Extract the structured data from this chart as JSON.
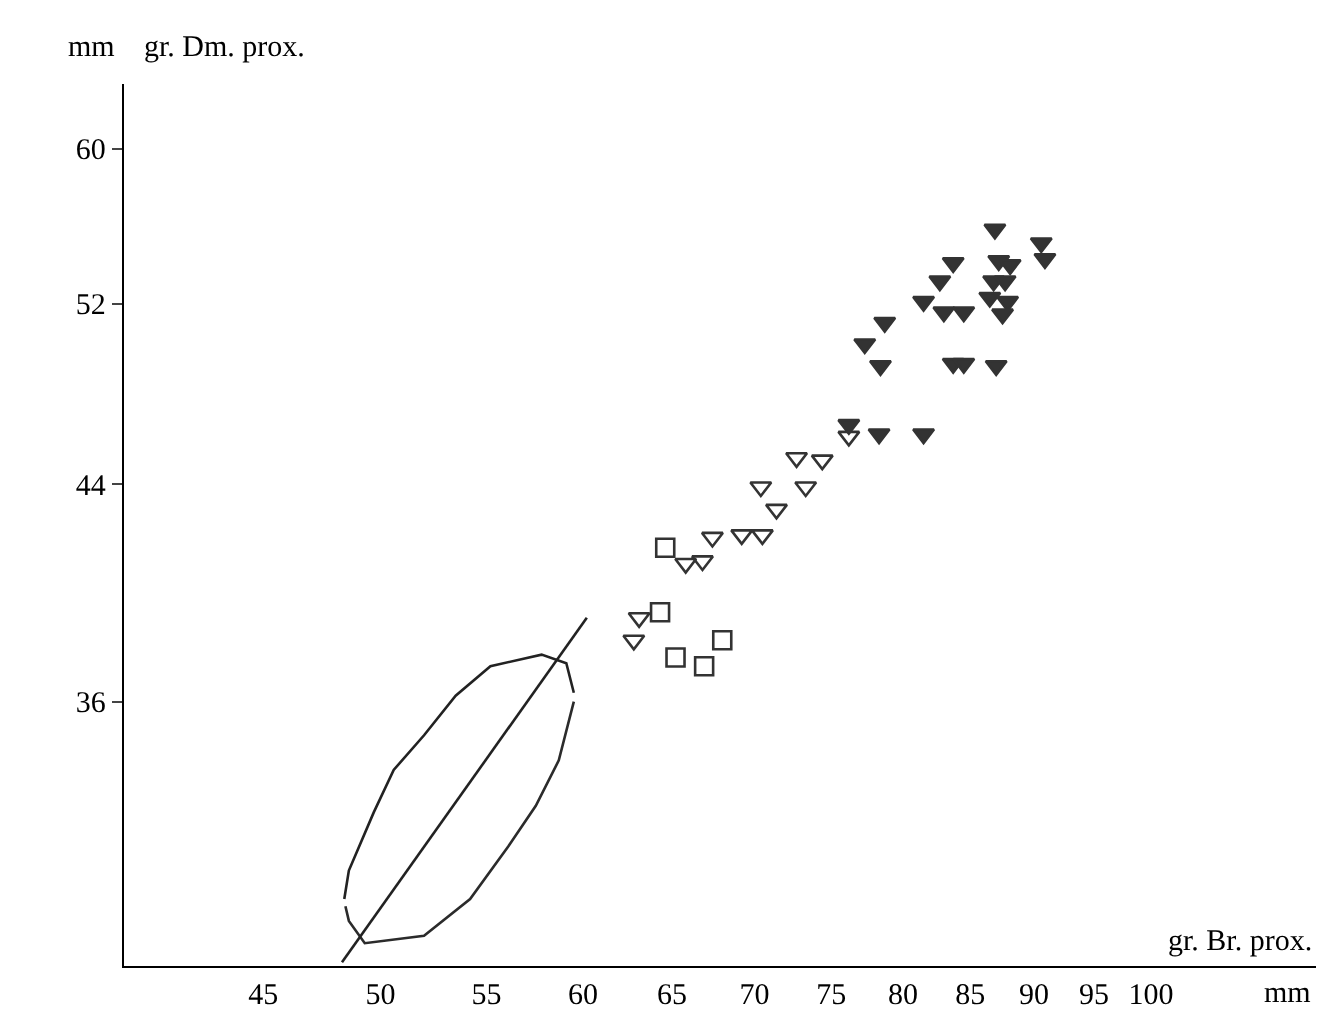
{
  "chart_data": {
    "type": "scatter",
    "xlabel": "gr. Br. prox.",
    "ylabel": "gr. Dm. prox.",
    "annotations": [
      "mm",
      "mm"
    ],
    "log": "xy",
    "xlim": [
      39.7,
      116
    ],
    "ylim": [
      28.2,
      63.7
    ],
    "xticks": [
      45,
      50,
      55,
      60,
      65,
      70,
      75,
      80,
      85,
      90,
      95,
      100
    ],
    "yticks": [
      36,
      44,
      52,
      60
    ],
    "series": [
      {
        "marker": "triangle",
        "color": "#333333",
        "x": [
          86.9,
          90.6,
          90.9,
          83.7,
          87.2,
          88.1,
          82.7,
          86.8,
          87.7,
          81.5,
          83.0,
          84.5,
          86.5,
          87.9,
          87.5,
          78.7,
          77.3,
          78.4,
          83.7,
          84.5,
          87.0,
          78.3,
          81.5,
          76.2
        ],
        "values": [
          55.7,
          55.0,
          54.2,
          54.0,
          54.1,
          53.9,
          53.1,
          53.1,
          53.1,
          52.1,
          51.6,
          51.6,
          52.3,
          52.1,
          51.5,
          51.1,
          50.1,
          49.1,
          49.2,
          49.2,
          49.1,
          46.1,
          46.1,
          46.5
        ]
      },
      {
        "marker": "triangle-open",
        "color": "#333333",
        "x": [
          76.2,
          72.7,
          74.4,
          70.4,
          73.3,
          71.4,
          67.4,
          69.2,
          70.5,
          65.8,
          66.8,
          63.1,
          62.8
        ],
        "values": [
          46.0,
          45.1,
          45.0,
          43.9,
          43.9,
          43.0,
          41.9,
          42.0,
          42.0,
          40.9,
          41.0,
          38.9,
          38.1
        ]
      },
      {
        "marker": "square-open",
        "color": "#333333",
        "x": [
          64.6,
          64.3,
          68.0,
          65.2,
          66.9
        ],
        "values": [
          41.5,
          39.1,
          38.1,
          37.5,
          37.2
        ]
      },
      {
        "type": "line",
        "marker": "none",
        "color": "#222222",
        "x": [
          48.4,
          48.6,
          49.7,
          50.6,
          52.0,
          53.5,
          55.2,
          57.8,
          59.1,
          59.5
        ],
        "values": [
          30.0,
          30.8,
          32.5,
          33.8,
          34.9,
          36.2,
          37.2,
          37.6,
          37.3,
          36.3
        ]
      },
      {
        "type": "line",
        "marker": "none",
        "color": "#2b2b2b",
        "x": [
          48.45,
          48.6,
          49.3,
          52.0,
          54.2,
          56.1,
          57.5,
          58.7,
          59.5
        ],
        "values": [
          29.8,
          29.4,
          28.8,
          29.0,
          30.0,
          31.5,
          32.7,
          34.1,
          36.0
        ]
      },
      {
        "type": "line",
        "marker": "none",
        "color": "#222222",
        "x": [
          48.3,
          60.2
        ],
        "values": [
          28.3,
          38.9
        ]
      }
    ]
  }
}
